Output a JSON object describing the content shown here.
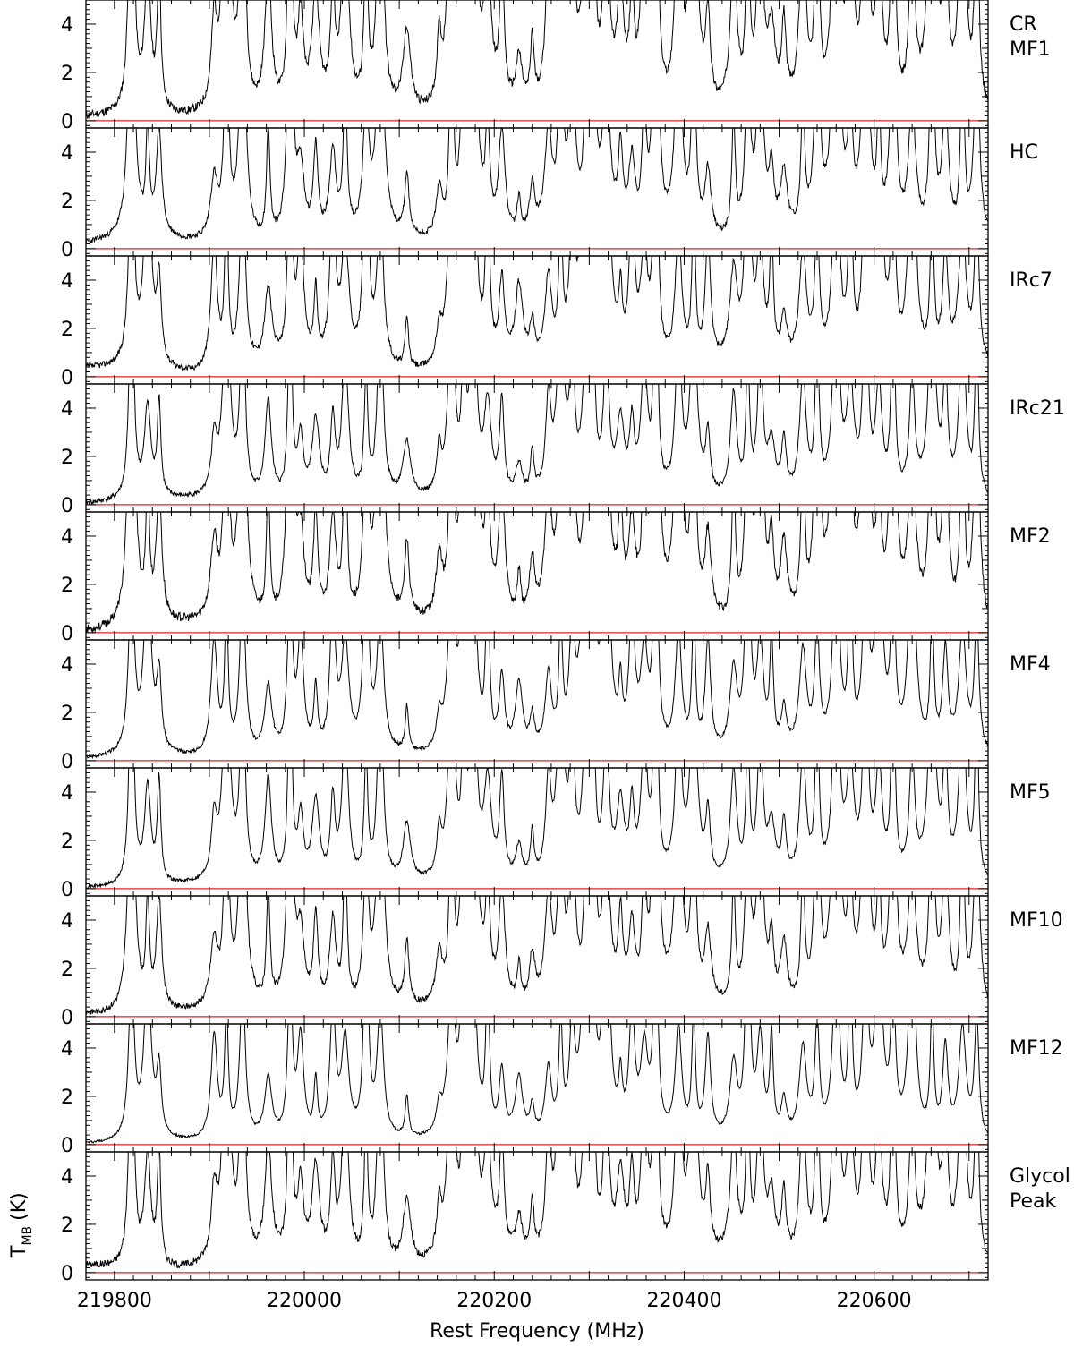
{
  "chart_data": {
    "type": "line",
    "xlabel": "Rest Frequency (MHz)",
    "ylabel": "T",
    "ylabel_sub": "MB",
    "ylabel_unit": "(K)",
    "xlim": [
      219770,
      220720
    ],
    "ylim": [
      -0.3,
      5.0
    ],
    "x_ticks": [
      219800,
      220000,
      220200,
      220400,
      220600
    ],
    "x_tick_labels": [
      "219800",
      "220000",
      "220200",
      "220400",
      "220600"
    ],
    "y_ticks": [
      0,
      2,
      4
    ],
    "y_tick_labels": [
      "0",
      "2",
      "4"
    ],
    "baseline": 0,
    "baseline_color": "#e02020",
    "line_color": "#000000",
    "grid": false,
    "lines": [
      {
        "f": 219818,
        "a": 9
      },
      {
        "f": 219835,
        "a": 6
      },
      {
        "f": 219847,
        "a": 4
      },
      {
        "f": 219905,
        "a": 4.2
      },
      {
        "f": 219918,
        "a": 9
      },
      {
        "f": 219935,
        "a": 7
      },
      {
        "f": 219962,
        "a": 5
      },
      {
        "f": 219985,
        "a": 8
      },
      {
        "f": 219996,
        "a": 3.5
      },
      {
        "f": 220012,
        "a": 3
      },
      {
        "f": 220030,
        "a": 5
      },
      {
        "f": 220043,
        "a": 6
      },
      {
        "f": 220065,
        "a": 9
      },
      {
        "f": 220080,
        "a": 9
      },
      {
        "f": 220108,
        "a": 1.8
      },
      {
        "f": 220142,
        "a": 2.2
      },
      {
        "f": 220155,
        "a": 7
      },
      {
        "f": 220168,
        "a": 9
      },
      {
        "f": 220178,
        "a": 9
      },
      {
        "f": 220193,
        "a": 6
      },
      {
        "f": 220208,
        "a": 4
      },
      {
        "f": 220226,
        "a": 2.5
      },
      {
        "f": 220240,
        "a": 2
      },
      {
        "f": 220257,
        "a": 3
      },
      {
        "f": 220270,
        "a": 9
      },
      {
        "f": 220282,
        "a": 5
      },
      {
        "f": 220297,
        "a": 9
      },
      {
        "f": 220304,
        "a": 6
      },
      {
        "f": 220318,
        "a": 9
      },
      {
        "f": 220333,
        "a": 3
      },
      {
        "f": 220345,
        "a": 5
      },
      {
        "f": 220358,
        "a": 6
      },
      {
        "f": 220370,
        "a": 9
      },
      {
        "f": 220394,
        "a": 9
      },
      {
        "f": 220410,
        "a": 6
      },
      {
        "f": 220425,
        "a": 3.5
      },
      {
        "f": 220452,
        "a": 4
      },
      {
        "f": 220467,
        "a": 9
      },
      {
        "f": 220480,
        "a": 6
      },
      {
        "f": 220492,
        "a": 4
      },
      {
        "f": 220505,
        "a": 2.5
      },
      {
        "f": 220525,
        "a": 4
      },
      {
        "f": 220540,
        "a": 9
      },
      {
        "f": 220560,
        "a": 9
      },
      {
        "f": 220575,
        "a": 6
      },
      {
        "f": 220591,
        "a": 9
      },
      {
        "f": 220605,
        "a": 7
      },
      {
        "f": 220620,
        "a": 9
      },
      {
        "f": 220640,
        "a": 9
      },
      {
        "f": 220661,
        "a": 9
      },
      {
        "f": 220675,
        "a": 4
      },
      {
        "f": 220693,
        "a": 9
      },
      {
        "f": 220708,
        "a": 6
      }
    ],
    "panels": [
      {
        "name": "CR MF1",
        "label_lines": [
          "CR",
          "MF1"
        ],
        "scale": 1.35,
        "noise": 0.35,
        "background": 0.15,
        "seed": 11
      },
      {
        "name": "HC",
        "label_lines": [
          "HC"
        ],
        "scale": 1.0,
        "noise": 0.25,
        "background": 0.35,
        "seed": 23
      },
      {
        "name": "IRc7",
        "label_lines": [
          "IRc7"
        ],
        "scale": 1.05,
        "noise": 0.25,
        "background": 0.3,
        "seed": 37
      },
      {
        "name": "IRc21",
        "label_lines": [
          "IRc21"
        ],
        "scale": 0.9,
        "noise": 0.2,
        "background": 0.15,
        "seed": 41
      },
      {
        "name": "MF2",
        "label_lines": [
          "MF2"
        ],
        "scale": 1.25,
        "noise": 0.35,
        "background": 0.25,
        "seed": 53
      },
      {
        "name": "MF4",
        "label_lines": [
          "MF4"
        ],
        "scale": 0.95,
        "noise": 0.15,
        "background": 0.1,
        "seed": 67
      },
      {
        "name": "MF5",
        "label_lines": [
          "MF5"
        ],
        "scale": 0.95,
        "noise": 0.15,
        "background": 0.1,
        "seed": 71
      },
      {
        "name": "MF10",
        "label_lines": [
          "MF10"
        ],
        "scale": 1.05,
        "noise": 0.25,
        "background": 0.2,
        "seed": 83
      },
      {
        "name": "MF12",
        "label_lines": [
          "MF12"
        ],
        "scale": 0.85,
        "noise": 0.1,
        "background": 0.05,
        "seed": 97
      },
      {
        "name": "Glycol Peak",
        "label_lines": [
          "Glycol",
          "Peak"
        ],
        "scale": 1.1,
        "noise": 0.3,
        "background": 0.35,
        "seed": 101
      }
    ]
  }
}
